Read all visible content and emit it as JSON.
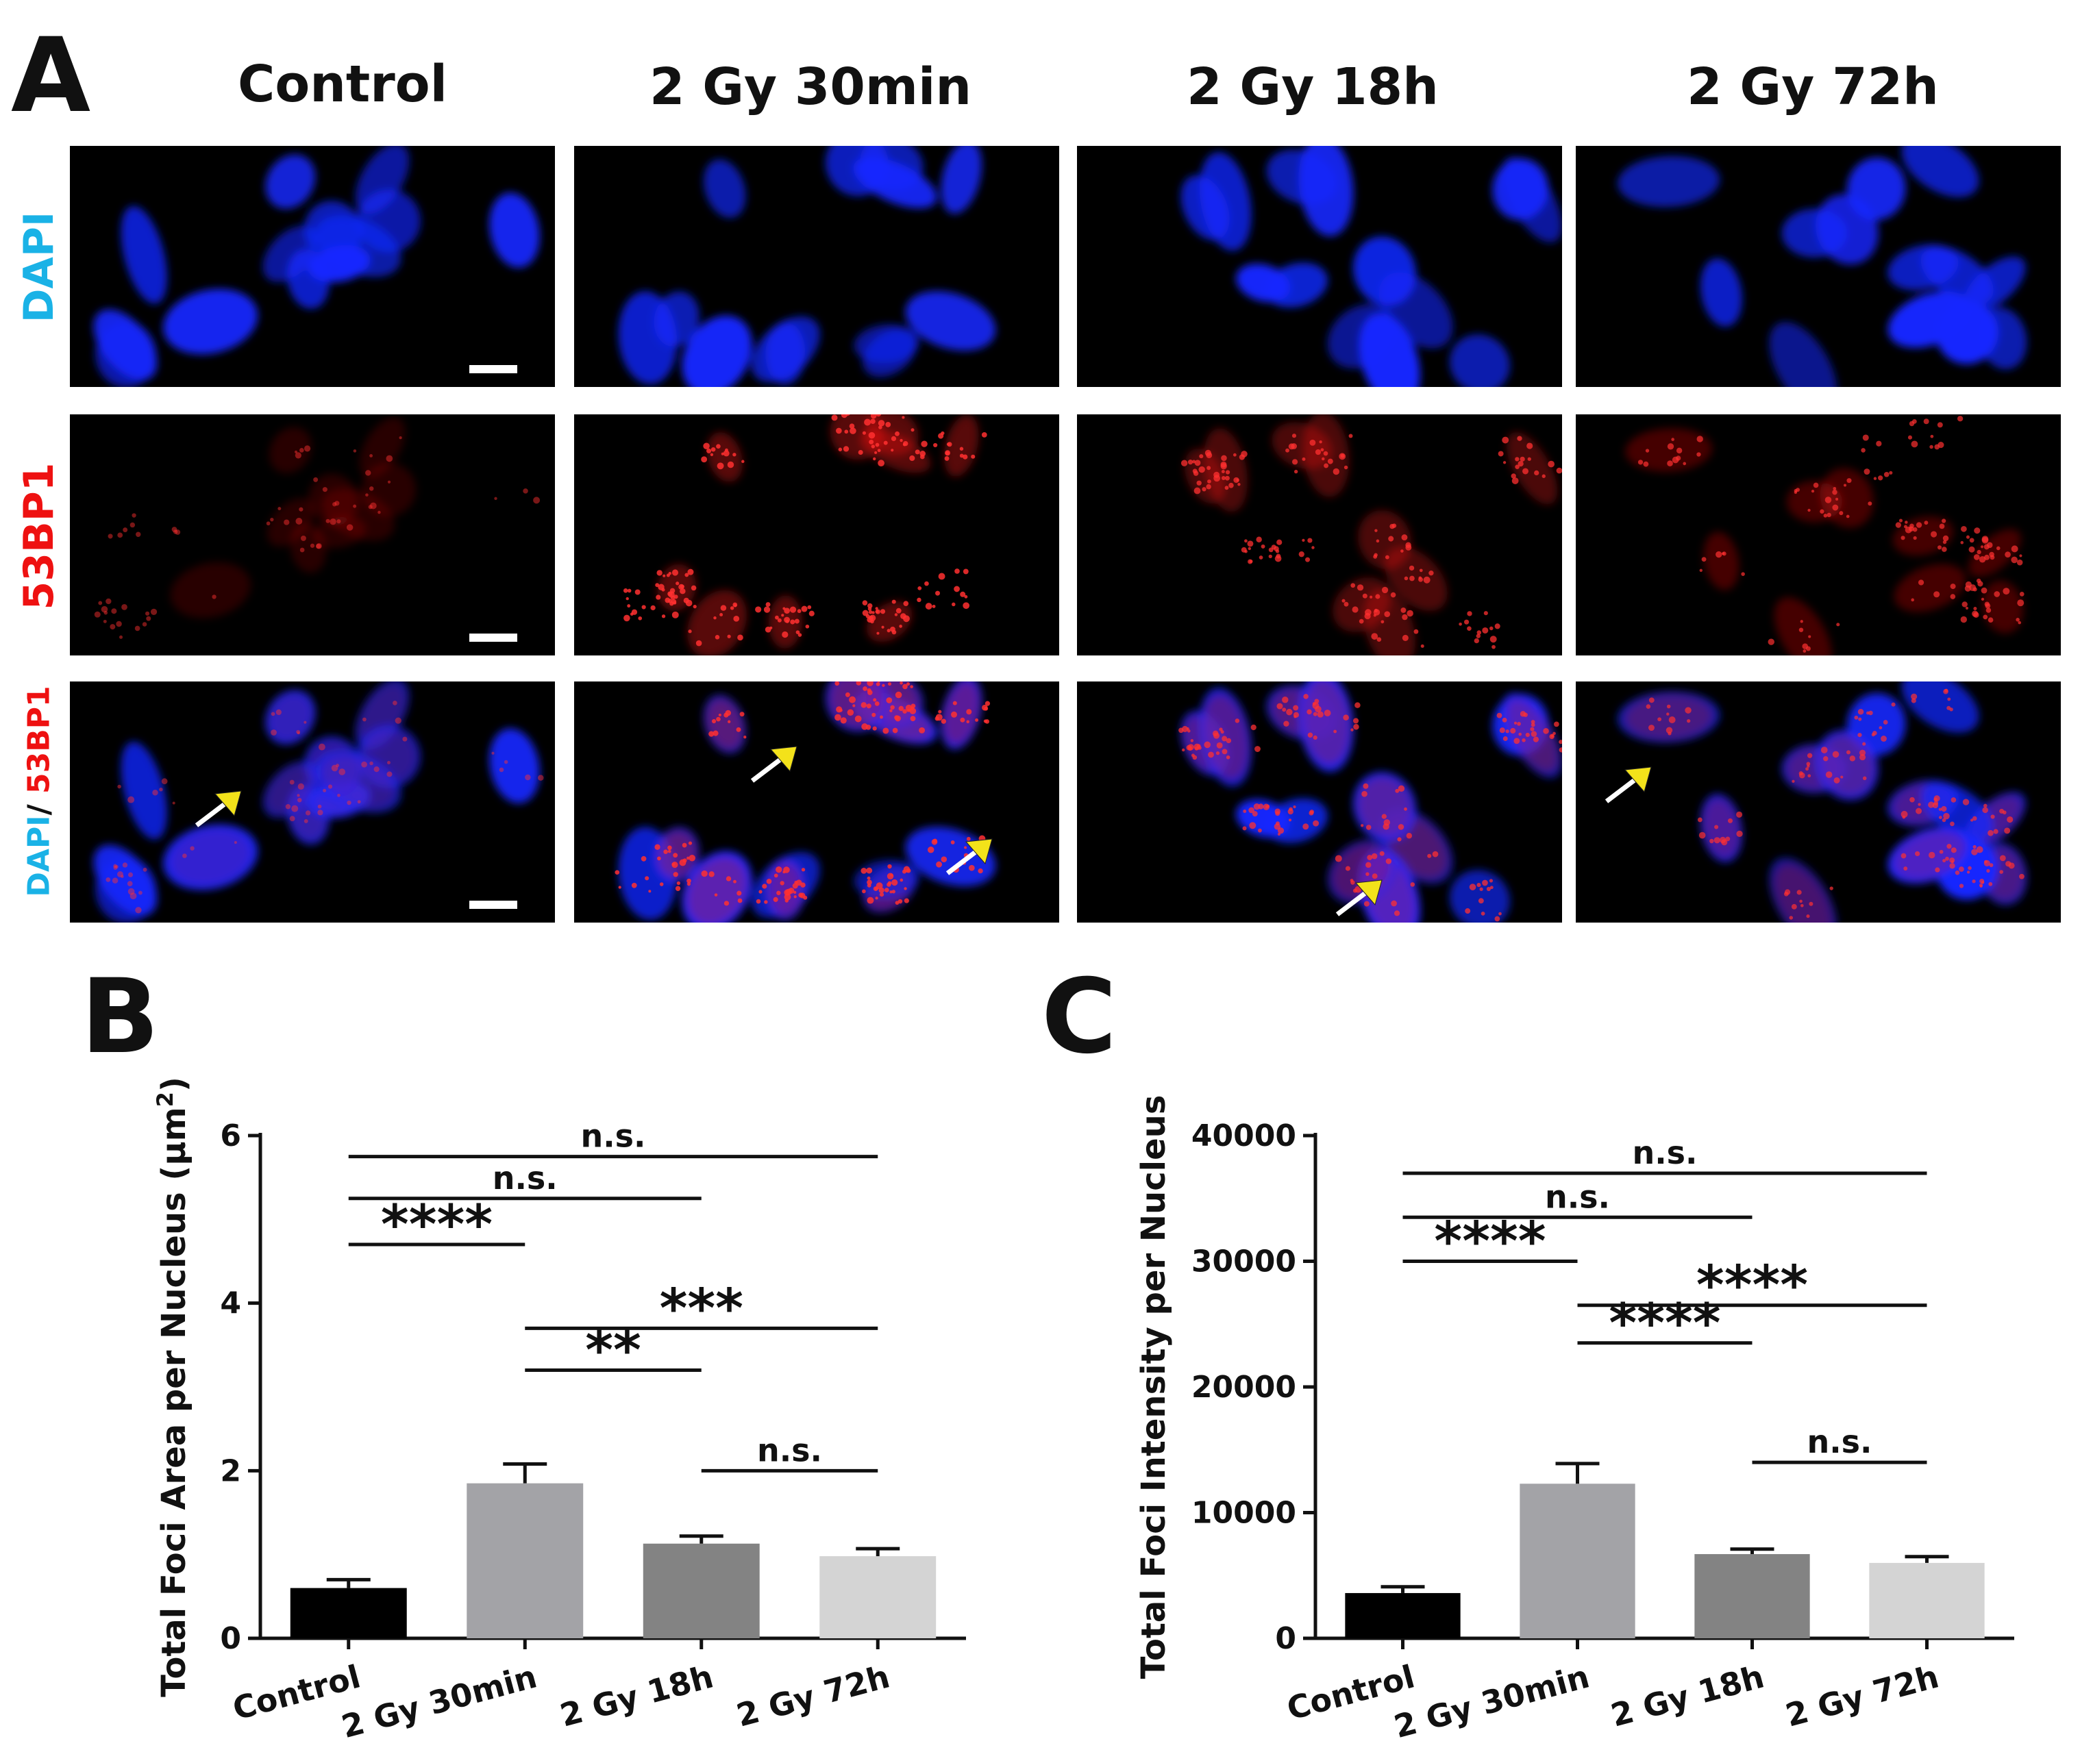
{
  "panel_a": {
    "letter": "A",
    "columns": [
      "Control",
      "2 Gy 30min",
      "2 Gy 18h",
      "2 Gy 72h"
    ],
    "rows": [
      {
        "parts": [
          {
            "text": "DAPI",
            "color": "#1ab2e6"
          }
        ]
      },
      {
        "parts": [
          {
            "text": "53BP1",
            "color": "#ee1111"
          }
        ]
      },
      {
        "parts": [
          {
            "text": "DAPI",
            "color": "#1ab2e6"
          },
          {
            "text": "/ ",
            "color": "#111111"
          },
          {
            "text": "53BP1",
            "color": "#ee1111"
          }
        ]
      }
    ],
    "channel_colors": {
      "dapi": "#1428ff",
      "foci": "#ff1414",
      "arrow_head": "#f3e21a",
      "arrow_shaft": "#ffffff",
      "scale_bar": "#ffffff"
    }
  },
  "chart_data": [
    {
      "letter": "B",
      "type": "bar",
      "ylabel_main": "Total Foci Area per Nucleus (μm",
      "ylabel_sup": "2",
      "ylabel_end": ")",
      "categories": [
        "Control",
        "2 Gy 30min",
        "2 Gy 18h",
        "2 Gy 72h"
      ],
      "values": [
        0.6,
        1.85,
        1.13,
        0.98
      ],
      "errors": [
        0.1,
        0.23,
        0.09,
        0.09
      ],
      "colors": [
        "#000000",
        "#a3a3a7",
        "#838383",
        "#d4d4d4"
      ],
      "ylim": [
        0,
        6
      ],
      "yticks": [
        "0",
        "2",
        "4",
        "6"
      ],
      "ytick_values": [
        0,
        2,
        4,
        6
      ],
      "comparisons": [
        {
          "from": 0,
          "to": 3,
          "label": "n.s.",
          "y": 5.75
        },
        {
          "from": 0,
          "to": 2,
          "label": "n.s.",
          "y": 5.25
        },
        {
          "from": 0,
          "to": 1,
          "label": "****",
          "y": 4.7
        },
        {
          "from": 1,
          "to": 3,
          "label": "***",
          "y": 3.7
        },
        {
          "from": 1,
          "to": 2,
          "label": "**",
          "y": 3.2
        },
        {
          "from": 2,
          "to": 3,
          "label": "n.s.",
          "y": 2.0
        }
      ]
    },
    {
      "letter": "C",
      "type": "bar",
      "ylabel_main": "Total Foci Intensity per Nucleus",
      "ylabel_sup": "",
      "ylabel_end": "",
      "categories": [
        "Control",
        "2 Gy 30min",
        "2 Gy 18h",
        "2 Gy 72h"
      ],
      "values": [
        3600,
        12300,
        6700,
        6000
      ],
      "errors": [
        500,
        1600,
        400,
        500
      ],
      "colors": [
        "#000000",
        "#a3a3a7",
        "#838383",
        "#d4d4d4"
      ],
      "ylim": [
        0,
        40000
      ],
      "yticks": [
        "0",
        "10000",
        "20000",
        "30000",
        "40000"
      ],
      "ytick_values": [
        0,
        10000,
        20000,
        30000,
        40000
      ],
      "comparisons": [
        {
          "from": 0,
          "to": 3,
          "label": "n.s.",
          "y": 37000
        },
        {
          "from": 0,
          "to": 2,
          "label": "n.s.",
          "y": 33500
        },
        {
          "from": 0,
          "to": 1,
          "label": "****",
          "y": 30000
        },
        {
          "from": 1,
          "to": 3,
          "label": "****",
          "y": 26500
        },
        {
          "from": 1,
          "to": 2,
          "label": "****",
          "y": 23500
        },
        {
          "from": 2,
          "to": 3,
          "label": "n.s.",
          "y": 14000
        }
      ]
    }
  ]
}
